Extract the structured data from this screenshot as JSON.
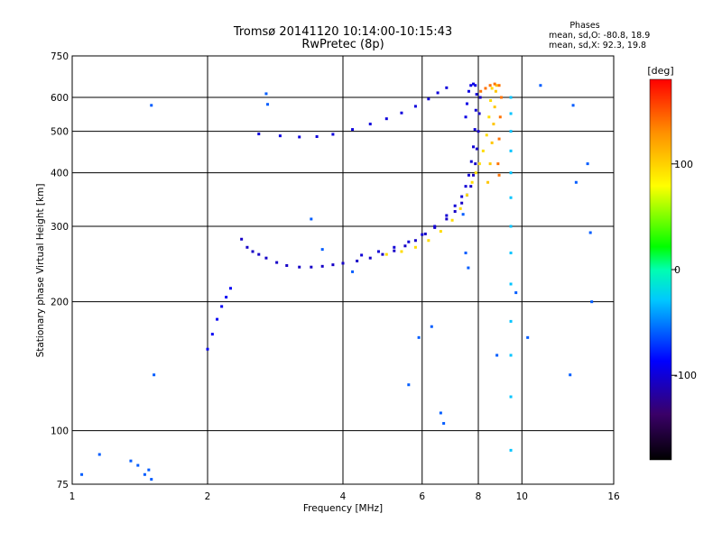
{
  "chart_data": {
    "type": "scatter",
    "title": "Tromsø 20141120 10:14:00-10:15:43",
    "subtitle": "RwPretec (8p)",
    "xlabel": "Frequency [MHz]",
    "ylabel": "Stationary phase Virtual Height [km]",
    "x_scale": "log",
    "y_scale": "log",
    "xlim": [
      1,
      16
    ],
    "ylim": [
      75,
      750
    ],
    "xticks": [
      "1",
      "2",
      "4",
      "6",
      "8",
      "10",
      "16"
    ],
    "xtick_values": [
      1,
      2,
      4,
      6,
      8,
      10,
      16
    ],
    "yticks": [
      "75",
      "100",
      "200",
      "300",
      "400",
      "500",
      "600",
      "750"
    ],
    "ytick_values": [
      75,
      100,
      200,
      300,
      400,
      500,
      600,
      750
    ],
    "grid": true,
    "phase_box": {
      "heading": "Phases",
      "line_o": "mean, sd,O: -80.8, 18.9",
      "line_x": "mean, sd,X:  92.3, 19.8"
    },
    "colorbar": {
      "label": "[deg]",
      "min": -180,
      "max": 180,
      "ticks": [
        "100",
        "0",
        "-100"
      ],
      "tick_values": [
        100,
        0,
        -100
      ]
    },
    "series": [
      {
        "trace": "o-mode-low-band",
        "points": [
          [
            2.38,
            280
          ],
          [
            2.45,
            268
          ],
          [
            2.52,
            262
          ],
          [
            2.6,
            258
          ],
          [
            2.7,
            253
          ],
          [
            2.85,
            247
          ],
          [
            3.0,
            243
          ],
          [
            3.2,
            241
          ],
          [
            3.4,
            241
          ],
          [
            3.6,
            242
          ],
          [
            3.8,
            244
          ],
          [
            4.0,
            246
          ],
          [
            4.3,
            249
          ],
          [
            4.6,
            253
          ],
          [
            4.9,
            258
          ],
          [
            5.2,
            263
          ],
          [
            5.5,
            270
          ],
          [
            5.8,
            278
          ],
          [
            6.1,
            288
          ],
          [
            6.4,
            298
          ],
          [
            6.8,
            312
          ],
          [
            7.1,
            325
          ],
          [
            7.35,
            340
          ],
          [
            7.55,
            355
          ],
          [
            7.7,
            372
          ],
          [
            7.8,
            395
          ],
          [
            7.88,
            420
          ],
          [
            7.94,
            455
          ],
          [
            8.0,
            500
          ],
          [
            8.04,
            550
          ],
          [
            8.08,
            600
          ]
        ],
        "phase": -105
      },
      {
        "trace": "o-mode-upper-band",
        "points": [
          [
            4.4,
            257
          ],
          [
            4.8,
            262
          ],
          [
            5.2,
            268
          ],
          [
            5.6,
            276
          ],
          [
            6.0,
            287
          ],
          [
            6.4,
            300
          ],
          [
            6.8,
            318
          ],
          [
            7.1,
            335
          ],
          [
            7.35,
            352
          ],
          [
            7.5,
            372
          ],
          [
            7.62,
            395
          ],
          [
            7.72,
            425
          ],
          [
            7.8,
            460
          ],
          [
            7.86,
            505
          ],
          [
            7.9,
            560
          ],
          [
            7.93,
            610
          ]
        ],
        "phase": -100
      },
      {
        "trace": "o-mode-high-layer",
        "points": [
          [
            2.6,
            493
          ],
          [
            2.9,
            488
          ],
          [
            3.2,
            485
          ],
          [
            3.5,
            486
          ],
          [
            3.8,
            492
          ],
          [
            4.2,
            505
          ],
          [
            4.6,
            520
          ],
          [
            5.0,
            535
          ],
          [
            5.4,
            552
          ],
          [
            5.8,
            572
          ],
          [
            6.2,
            595
          ],
          [
            6.5,
            615
          ],
          [
            6.8,
            632
          ]
        ],
        "phase": -98
      },
      {
        "trace": "o-mode-cusp",
        "points": [
          [
            7.5,
            540
          ],
          [
            7.55,
            580
          ],
          [
            7.62,
            620
          ],
          [
            7.7,
            640
          ],
          [
            7.8,
            645
          ],
          [
            7.88,
            640
          ]
        ],
        "phase": -95
      },
      {
        "trace": "o-mode-f1",
        "points": [
          [
            2.0,
            155
          ],
          [
            2.05,
            168
          ],
          [
            2.1,
            182
          ],
          [
            2.15,
            195
          ],
          [
            2.2,
            205
          ],
          [
            2.25,
            215
          ]
        ],
        "phase": -90
      },
      {
        "trace": "x-mode-curve",
        "points": [
          [
            5.0,
            258
          ],
          [
            5.4,
            262
          ],
          [
            5.8,
            268
          ],
          [
            6.2,
            278
          ],
          [
            6.6,
            292
          ],
          [
            7.0,
            310
          ],
          [
            7.3,
            330
          ],
          [
            7.55,
            355
          ],
          [
            7.75,
            380
          ],
          [
            7.9,
            400
          ],
          [
            8.05,
            420
          ],
          [
            8.2,
            450
          ],
          [
            8.35,
            490
          ],
          [
            8.45,
            540
          ],
          [
            8.52,
            590
          ],
          [
            8.58,
            630
          ]
        ],
        "phase": 95
      },
      {
        "trace": "x-mode-cusp",
        "points": [
          [
            8.4,
            380
          ],
          [
            8.5,
            420
          ],
          [
            8.58,
            470
          ],
          [
            8.65,
            520
          ],
          [
            8.7,
            570
          ],
          [
            8.75,
            620
          ],
          [
            8.78,
            640
          ]
        ],
        "phase": 105
      },
      {
        "trace": "x-mode-lower",
        "points": [
          [
            8.1,
            620
          ],
          [
            8.3,
            630
          ],
          [
            8.5,
            640
          ],
          [
            8.7,
            645
          ],
          [
            8.9,
            640
          ],
          [
            9.0,
            600
          ],
          [
            8.95,
            540
          ],
          [
            8.9,
            480
          ],
          [
            8.85,
            420
          ],
          [
            8.9,
            395
          ]
        ],
        "phase": 140
      },
      {
        "trace": "vertical-streak",
        "points": [
          [
            9.45,
            90
          ],
          [
            9.45,
            120
          ],
          [
            9.45,
            150
          ],
          [
            9.45,
            180
          ],
          [
            9.45,
            220
          ],
          [
            9.45,
            260
          ],
          [
            9.45,
            300
          ],
          [
            9.45,
            350
          ],
          [
            9.45,
            400
          ],
          [
            9.45,
            450
          ],
          [
            9.45,
            500
          ],
          [
            9.45,
            550
          ],
          [
            9.45,
            600
          ]
        ],
        "phase": -30
      },
      {
        "trace": "scattered",
        "points": [
          [
            1.05,
            79
          ],
          [
            1.15,
            88
          ],
          [
            1.35,
            85
          ],
          [
            1.4,
            83
          ],
          [
            1.45,
            79
          ],
          [
            1.48,
            81
          ],
          [
            1.5,
            77
          ],
          [
            1.5,
            575
          ],
          [
            1.52,
            135
          ],
          [
            2.7,
            612
          ],
          [
            2.72,
            578
          ],
          [
            3.4,
            312
          ],
          [
            3.6,
            265
          ],
          [
            4.2,
            235
          ],
          [
            5.6,
            128
          ],
          [
            5.9,
            165
          ],
          [
            6.3,
            175
          ],
          [
            6.6,
            110
          ],
          [
            6.7,
            104
          ],
          [
            7.4,
            320
          ],
          [
            7.5,
            260
          ],
          [
            7.6,
            240
          ],
          [
            8.8,
            150
          ],
          [
            9.7,
            210
          ],
          [
            10.3,
            165
          ],
          [
            11.0,
            640
          ],
          [
            12.8,
            135
          ],
          [
            13.0,
            575
          ],
          [
            13.2,
            380
          ],
          [
            14.0,
            420
          ],
          [
            14.2,
            290
          ],
          [
            14.3,
            200
          ]
        ],
        "phase": -60
      }
    ]
  }
}
